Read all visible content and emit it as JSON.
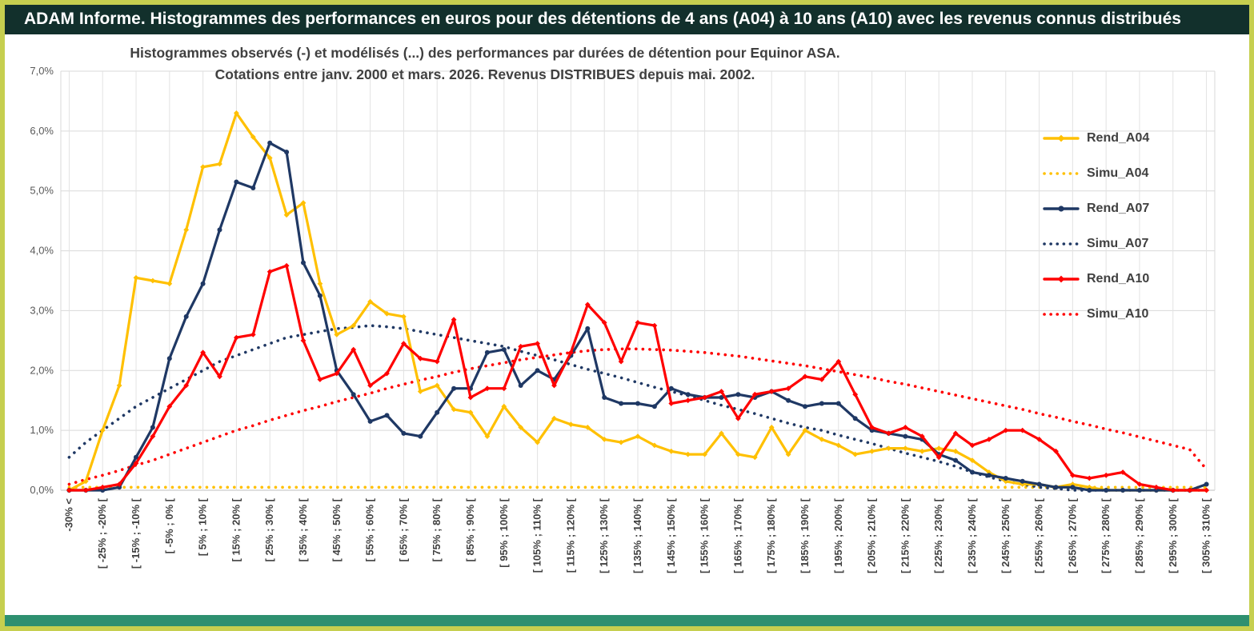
{
  "header": {
    "title": "ADAM Informe. Histogrammes des performances en euros pour des détentions de 4 ans (A04) à 10 ans (A10) avec les revenus connus distribués"
  },
  "colors": {
    "frame_border": "#c6cf4f",
    "titlebar_bg": "#12302c",
    "titlebar_text": "#ffffff",
    "footer_bar": "#2e9070",
    "gridline": "#d9d9d9",
    "axis_text": "#595959",
    "title_text": "#404040",
    "rend_a04": "#FFC000",
    "rend_a07": "#1F3864",
    "rend_a10": "#FF0000"
  },
  "chart_data": {
    "type": "line",
    "title_lines": [
      "Histogrammes observés (-) et modélisés (...) des performances par durées de détention pour Equinor ASA.",
      "Cotations entre janv. 2000 et mars. 2026. Revenus DISTRIBUES depuis mai. 2002."
    ],
    "xlabel": "",
    "ylabel": "",
    "ylim": [
      0,
      7
    ],
    "grid": true,
    "legend_position": "right-inside",
    "y_ticks": [
      "0,0%",
      "1,0%",
      "2,0%",
      "3,0%",
      "4,0%",
      "5,0%",
      "6,0%",
      "7,0%"
    ],
    "bins": 69,
    "x_label_every": 2,
    "x_tick_labels": [
      "-30% <",
      "[ -25% ; -20% [",
      "[ -15% ; -10% [",
      "[ -5% ; 0% [",
      "[ 5% ; 10% [",
      "[ 15% ; 20% [",
      "[ 25% ; 30% [",
      "[ 35% ; 40% [",
      "[ 45% ; 50% [",
      "[ 55% ; 60% [",
      "[ 65% ; 70% [",
      "[ 75% ; 80% [",
      "[ 85% ; 90% [",
      "[ 95% ; 100% [",
      "[ 105% ; 110% [",
      "[ 115% ; 120% [",
      "[ 125% ; 130% [",
      "[ 135% ; 140% [",
      "[ 145% ; 150% [",
      "[ 155% ; 160% [",
      "[ 165% ; 170% [",
      "[ 175% ; 180% [",
      "[ 185% ; 190% [",
      "[ 195% ; 200% [",
      "[ 205% ; 210% [",
      "[ 215% ; 220% [",
      "[ 225% ; 230% [",
      "[ 235% ; 240% [",
      "[ 245% ; 250% [",
      "[ 255% ; 260% [",
      "[ 265% ; 270% [",
      "[ 275% ; 280% [",
      "[ 285% ; 290% [",
      "[ 295% ; 300% [",
      "[ 305% ; 310% ["
    ],
    "series": [
      {
        "name": "Rend_A04",
        "color": "#FFC000",
        "style": "solid",
        "markers": true,
        "marker": "diamond",
        "values": [
          0,
          0.15,
          1.0,
          1.75,
          3.55,
          3.5,
          3.45,
          4.35,
          5.4,
          5.45,
          6.3,
          5.9,
          5.55,
          4.6,
          4.8,
          3.45,
          2.6,
          2.75,
          3.15,
          2.95,
          2.9,
          1.65,
          1.75,
          1.35,
          1.3,
          0.9,
          1.4,
          1.05,
          0.8,
          1.2,
          1.1,
          1.05,
          0.85,
          0.8,
          0.9,
          0.75,
          0.65,
          0.6,
          0.6,
          0.95,
          0.6,
          0.55,
          1.05,
          0.6,
          1.0,
          0.85,
          0.75,
          0.6,
          0.65,
          0.7,
          0.7,
          0.65,
          0.7,
          0.65,
          0.5,
          0.3,
          0.15,
          0.1,
          0.1,
          0.05,
          0.1,
          0.05,
          0,
          0,
          0,
          0,
          0,
          0,
          0
        ]
      },
      {
        "name": "Simu_A04",
        "color": "#FFC000",
        "style": "dotted",
        "markers": false,
        "marker": "none",
        "values": [
          0.05,
          0.05,
          0.05,
          0.05,
          0.05,
          0.05,
          0.05,
          0.05,
          0.05,
          0.05,
          0.05,
          0.05,
          0.05,
          0.05,
          0.05,
          0.05,
          0.05,
          0.05,
          0.05,
          0.05,
          0.05,
          0.05,
          0.05,
          0.05,
          0.05,
          0.05,
          0.05,
          0.05,
          0.05,
          0.05,
          0.05,
          0.05,
          0.05,
          0.05,
          0.05,
          0.05,
          0.05,
          0.05,
          0.05,
          0.05,
          0.05,
          0.05,
          0.05,
          0.05,
          0.05,
          0.05,
          0.05,
          0.05,
          0.05,
          0.05,
          0.05,
          0.05,
          0.05,
          0.05,
          0.05,
          0.05,
          0.05,
          0.05,
          0.05,
          0.05,
          0.05,
          0.05,
          0.05,
          0.05,
          0.05,
          0.05,
          0.05,
          0.05,
          0.05
        ]
      },
      {
        "name": "Rend_A07",
        "color": "#1F3864",
        "style": "solid",
        "markers": true,
        "marker": "circle",
        "values": [
          0,
          0,
          0,
          0.05,
          0.55,
          1.05,
          2.2,
          2.9,
          3.45,
          4.35,
          5.15,
          5.05,
          5.8,
          5.65,
          3.8,
          3.25,
          2.0,
          1.6,
          1.15,
          1.25,
          0.95,
          0.9,
          1.3,
          1.7,
          1.7,
          2.3,
          2.35,
          1.75,
          2.0,
          1.85,
          2.25,
          2.7,
          1.55,
          1.45,
          1.45,
          1.4,
          1.7,
          1.6,
          1.55,
          1.55,
          1.6,
          1.55,
          1.65,
          1.5,
          1.4,
          1.45,
          1.45,
          1.2,
          1.0,
          0.95,
          0.9,
          0.85,
          0.6,
          0.5,
          0.3,
          0.25,
          0.2,
          0.15,
          0.1,
          0.05,
          0.05,
          0,
          0,
          0,
          0,
          0,
          0,
          0,
          0.1
        ]
      },
      {
        "name": "Simu_A07",
        "color": "#1F3864",
        "style": "dotted",
        "markers": false,
        "marker": "none",
        "values": [
          0.55,
          0.8,
          1.0,
          1.2,
          1.4,
          1.55,
          1.7,
          1.85,
          2.0,
          2.15,
          2.25,
          2.35,
          2.45,
          2.55,
          2.6,
          2.65,
          2.7,
          2.72,
          2.75,
          2.73,
          2.7,
          2.65,
          2.6,
          2.55,
          2.5,
          2.45,
          2.4,
          2.32,
          2.25,
          2.18,
          2.1,
          2.02,
          1.95,
          1.88,
          1.8,
          1.72,
          1.65,
          1.58,
          1.5,
          1.42,
          1.35,
          1.28,
          1.2,
          1.12,
          1.05,
          1.0,
          0.92,
          0.85,
          0.78,
          0.7,
          0.62,
          0.55,
          0.48,
          0.4,
          0.3,
          0.22,
          0.15,
          0.1,
          0.05,
          0.03,
          0,
          0,
          0,
          0,
          0,
          0,
          0,
          0,
          0
        ]
      },
      {
        "name": "Rend_A10",
        "color": "#FF0000",
        "style": "solid",
        "markers": true,
        "marker": "diamond",
        "values": [
          0,
          0,
          0.05,
          0.1,
          0.45,
          0.9,
          1.4,
          1.75,
          2.3,
          1.9,
          2.55,
          2.6,
          3.65,
          3.75,
          2.5,
          1.85,
          1.95,
          2.35,
          1.75,
          1.95,
          2.45,
          2.2,
          2.15,
          2.85,
          1.55,
          1.7,
          1.7,
          2.4,
          2.45,
          1.75,
          2.3,
          3.1,
          2.8,
          2.15,
          2.8,
          2.75,
          1.45,
          1.5,
          1.55,
          1.65,
          1.2,
          1.6,
          1.65,
          1.7,
          1.9,
          1.85,
          2.15,
          1.6,
          1.05,
          0.95,
          1.05,
          0.9,
          0.55,
          0.95,
          0.75,
          0.85,
          1.0,
          1.0,
          0.85,
          0.65,
          0.25,
          0.2,
          0.25,
          0.3,
          0.1,
          0.05,
          0,
          0,
          0
        ]
      },
      {
        "name": "Simu_A10",
        "color": "#FF0000",
        "style": "dotted",
        "markers": false,
        "marker": "none",
        "values": [
          0.1,
          0.18,
          0.25,
          0.33,
          0.42,
          0.5,
          0.6,
          0.7,
          0.8,
          0.9,
          1.0,
          1.08,
          1.17,
          1.25,
          1.33,
          1.4,
          1.48,
          1.55,
          1.62,
          1.7,
          1.77,
          1.84,
          1.9,
          1.97,
          2.03,
          2.08,
          2.13,
          2.18,
          2.22,
          2.26,
          2.3,
          2.33,
          2.35,
          2.36,
          2.36,
          2.35,
          2.34,
          2.32,
          2.3,
          2.27,
          2.24,
          2.2,
          2.16,
          2.12,
          2.08,
          2.03,
          1.98,
          1.93,
          1.88,
          1.82,
          1.77,
          1.71,
          1.65,
          1.59,
          1.53,
          1.47,
          1.41,
          1.35,
          1.28,
          1.22,
          1.15,
          1.09,
          1.02,
          0.96,
          0.89,
          0.82,
          0.75,
          0.68,
          0.35
        ]
      }
    ]
  }
}
